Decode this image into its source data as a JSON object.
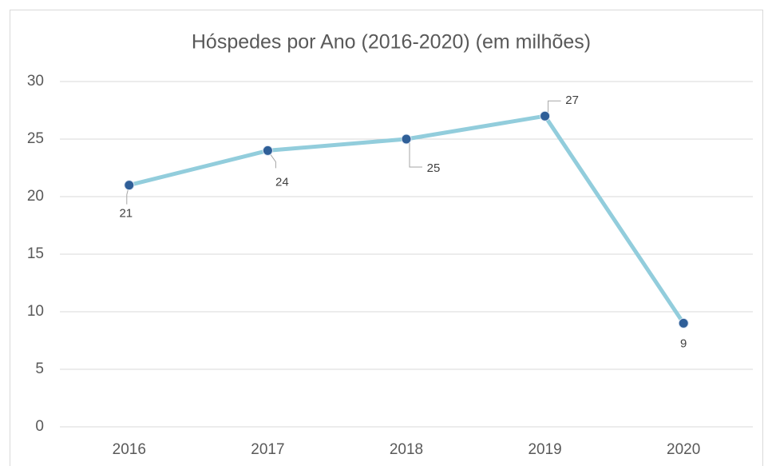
{
  "chart_data": {
    "type": "line",
    "title": "Hóspedes por Ano (2016-2020) (em milhões)",
    "categories": [
      "2016",
      "2017",
      "2018",
      "2019",
      "2020"
    ],
    "series": [
      {
        "name": "Hóspedes",
        "color": "#92cddc",
        "marker_color": "#2f5f98",
        "values": [
          21,
          24,
          25,
          27,
          9
        ]
      }
    ],
    "ylim": [
      0,
      30
    ],
    "yticks": [
      0,
      5,
      10,
      15,
      20,
      25,
      30
    ],
    "grid": true
  }
}
